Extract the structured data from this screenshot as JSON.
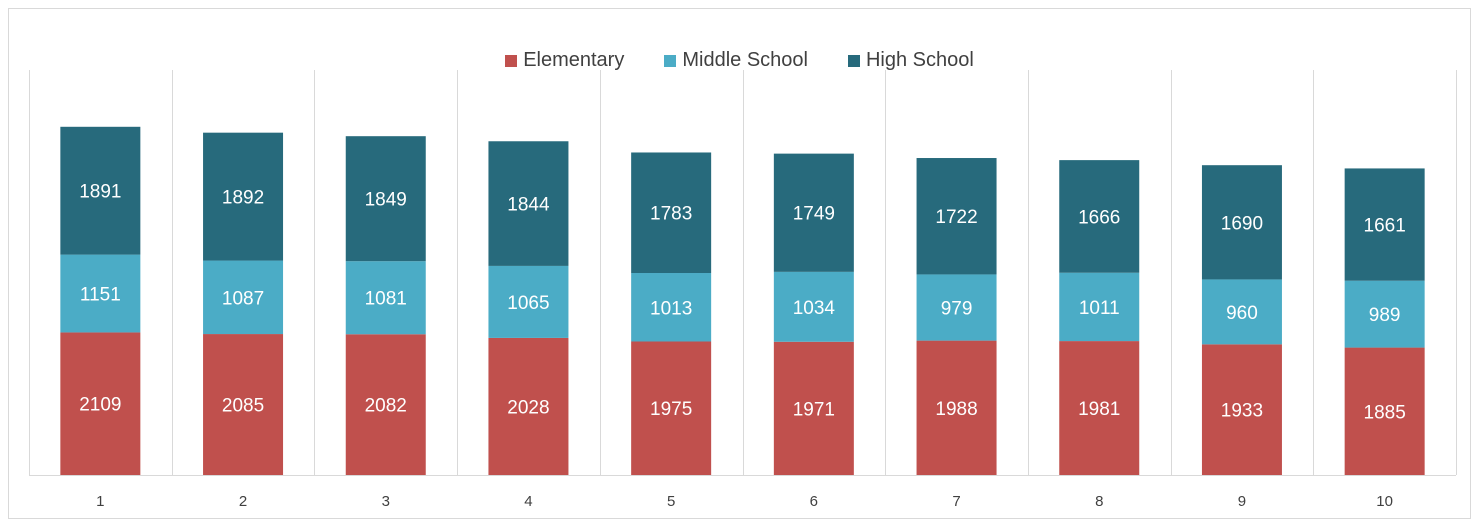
{
  "chart_data": {
    "type": "bar",
    "stacked": true,
    "categories": [
      "1",
      "2",
      "3",
      "4",
      "5",
      "6",
      "7",
      "8",
      "9",
      "10"
    ],
    "series": [
      {
        "name": "Elementary",
        "color": "#c0504d",
        "values": [
          2109,
          2085,
          2082,
          2028,
          1975,
          1971,
          1988,
          1981,
          1933,
          1885
        ]
      },
      {
        "name": "Middle School",
        "color": "#4bacc6",
        "values": [
          1151,
          1087,
          1081,
          1065,
          1013,
          1034,
          979,
          1011,
          960,
          989
        ]
      },
      {
        "name": "High School",
        "color": "#276a7c",
        "values": [
          1891,
          1892,
          1849,
          1844,
          1783,
          1749,
          1722,
          1666,
          1690,
          1661
        ]
      }
    ],
    "title": "",
    "xlabel": "",
    "ylabel": "",
    "ylim": [
      0,
      6000
    ],
    "legend_position": "top",
    "grid": "vertical category separators"
  }
}
